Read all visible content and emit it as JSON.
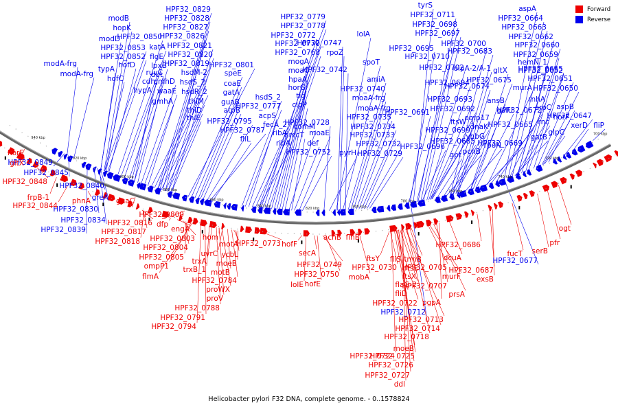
{
  "legend": {
    "forward": "Forward",
    "reverse": "Reverse",
    "forward_color": "#ee0000",
    "reverse_color": "#0000ee"
  },
  "caption": "Helicobacter pylori F32 DNA, complete genome. - 0..1578824",
  "ticks": [
    "940 kbp",
    "920 kbp",
    "900 kbp",
    "880 kbp",
    "860 kbp",
    "840 kbp",
    "820 kbp",
    "800 kbp",
    "780 kbp",
    "760 kbp",
    "740 kbp",
    "720 kbp",
    "700 kbp"
  ],
  "reverse_labels": [
    "modB",
    "hopK",
    "modD",
    "HPF32_0853",
    "HPF32_0852",
    "hofD",
    "hofC",
    "typA",
    "modA-frg",
    "modA-frg",
    "HPF32_0850",
    "katA",
    "flgE",
    "ruvC",
    "cdh",
    "hypA",
    "lpxB",
    "dut",
    "gmhD",
    "waaE",
    "gmhA",
    "HPF32_0819",
    "hsdM-2",
    "hsdS_2",
    "hsdR_2",
    "thiM",
    "thiD",
    "thiE",
    "HPF32_0829",
    "HPF32_0828",
    "HPF32_0827",
    "HPF32_0826",
    "HPF32_0821",
    "HPF32_0820",
    "HPF32_0801",
    "speE",
    "coaE",
    "gatA",
    "guaB",
    "atpB",
    "HPF32_0795",
    "HPF32_0787",
    "fliL",
    "HPF32_0779",
    "HPF32_0778",
    "HPF32_0772",
    "HPF32_0770",
    "HPF32_0768",
    "mogA",
    "moaC",
    "hpaA",
    "horG",
    "tig",
    "clpP",
    "comM",
    "hmcT",
    "def",
    "hsdS_2",
    "HPF32_0777",
    "acpS",
    "fecA_2",
    "ribA",
    "ribA",
    "moaE",
    "HPF32_0752",
    "lolA",
    "HPF32_0747",
    "rpoZ",
    "spoT",
    "HPF32_0742",
    "amiA",
    "HPF32_0740",
    "moaA-frg",
    "moaA-frg",
    "HPF32_0735",
    "HPF32_0734",
    "HPF32_0733",
    "HPF32_0732",
    "HPF32_0729",
    "HPF32_0728",
    "pyrH",
    "tyrS",
    "HPF32_0711",
    "HPF32_0698",
    "HPF32_0697",
    "HPF32_0695",
    "HPF32_0710",
    "HPF32_0702",
    "HPF32_0694",
    "HPF32_0693",
    "HPF32_0692",
    "HPF32_0691",
    "ftsW_1",
    "HPF32_0699",
    "HPF32_0696",
    "gpt",
    "HPF32_0700",
    "HPF32_0683",
    "oipA-2/A-1",
    "gltX",
    "HPF32_0675",
    "HPF32_0674",
    "HPF32_0685",
    "omp17",
    "dnaK",
    "yhbG",
    "rpoN",
    "pcnB",
    "ansB",
    "galU",
    "murA",
    "HPF32_0672",
    "HPF32_0665",
    "HPF32_0669",
    "aspA",
    "HPF32_0664",
    "HPF32_0663",
    "HPF32_0662",
    "HPF32_0660",
    "HPF32_0659",
    "HPF32_0655",
    "hemN_1",
    "HPF32_0652",
    "HPF32_0651",
    "HPF32_0650",
    "rnhA",
    "aroC",
    "rnc",
    "gatB",
    "horF",
    "aspB",
    "glpC",
    "HPF32_0647",
    "xerD",
    "fliP",
    "HPF32_0849",
    "HPF32_0845",
    "HPF32_0840",
    "greA",
    "HPF32_0830",
    "HPF32_0834",
    "HPF32_0839",
    "HPF32_0712",
    "HPF32_0677"
  ],
  "forward_labels": [
    "horE",
    "gltX",
    "HPF32_0848",
    "frpB-1",
    "HPF32_0844",
    "phnA",
    "guaC",
    "HPF32_0816",
    "HPF32_0817",
    "HPF32_0818",
    "HPF32_0809",
    "dfp",
    "engA",
    "HPF32_0803",
    "HPF32_0804",
    "HPF32_0805",
    "ompP1",
    "flmA",
    "hom",
    "uvrC",
    "trxA",
    "trxB_1",
    "motA",
    "ycbL",
    "moeB",
    "motB",
    "HPF32_0784",
    "proWX",
    "proV",
    "HPF32_0788",
    "HPF32_0791",
    "HPF32_0794",
    "HPF32_0773",
    "hofF",
    "secA",
    "HPF32_0749",
    "HPF32_0750",
    "lolE",
    "hofE",
    "acnB",
    "flhB",
    "mobA",
    "ftsY",
    "HPF32_0730",
    "fliS",
    "trmB",
    "ftsE",
    "ftsX",
    "flaG-2",
    "fliD",
    "HPF32_0722",
    "HPF32_0713",
    "HPF32_0714",
    "HPF32_0718",
    "moeB",
    "HPF32_0724",
    "HPF32_0725",
    "HPF32_0726",
    "HPF32_0727",
    "ddl",
    "HPF32_0705",
    "murF",
    "HPF32_0707",
    "prsA",
    "pgpA",
    "dcuA",
    "HPF32_0686",
    "HPF32_0687",
    "exsB",
    "fucT",
    "serB",
    "pfr",
    "ogt"
  ]
}
